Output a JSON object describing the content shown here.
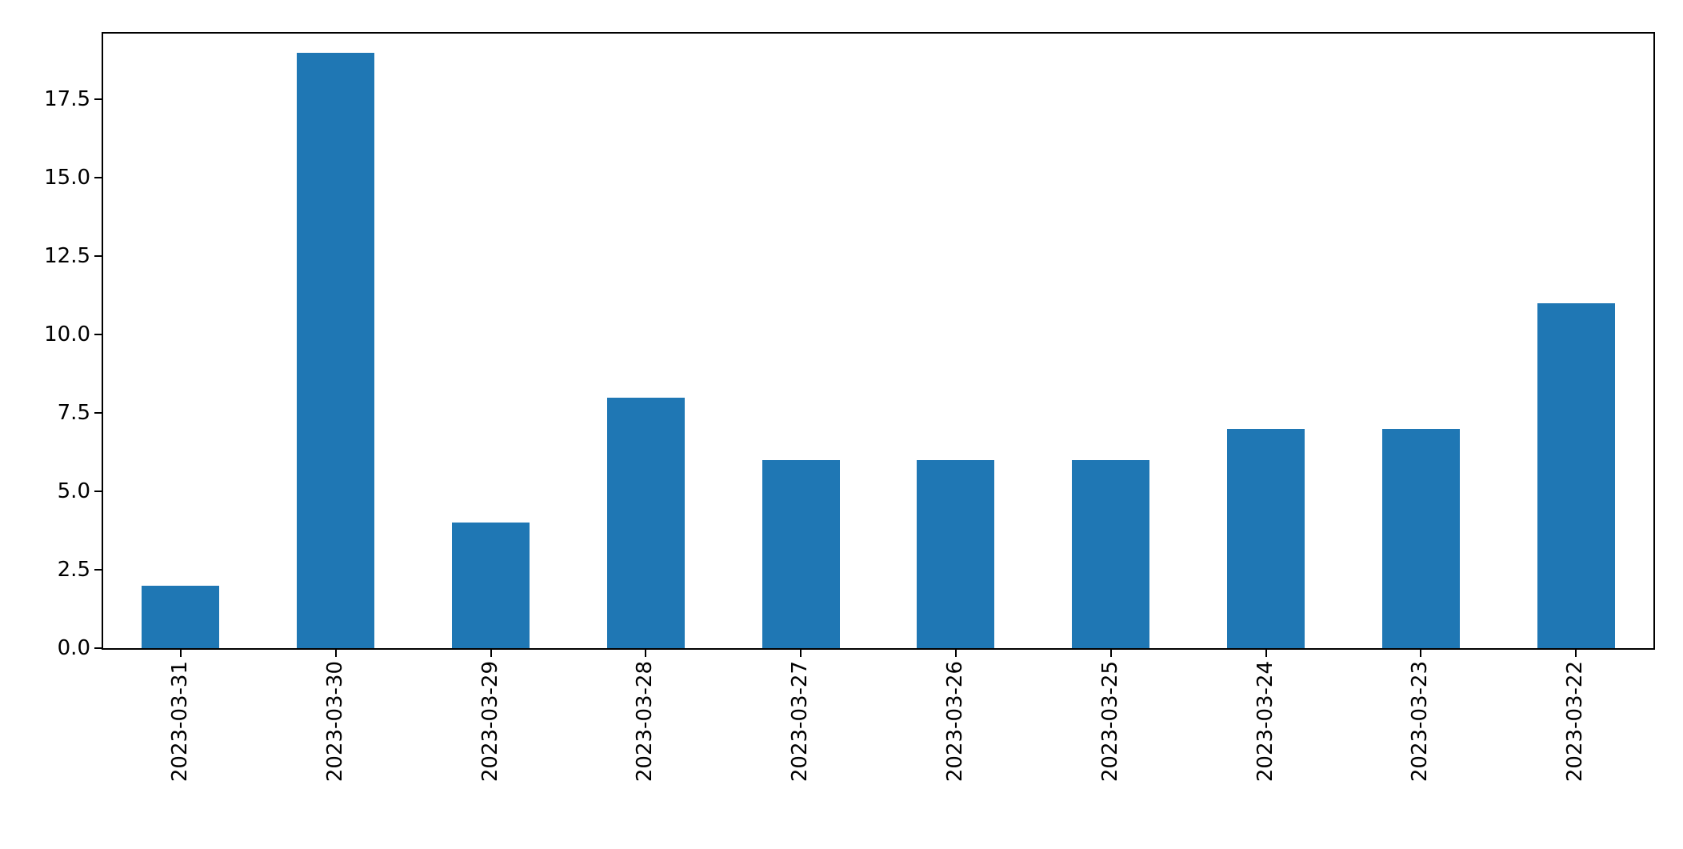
{
  "figure": {
    "background_color": "#ffffff",
    "title": ""
  },
  "chart_data": {
    "type": "bar",
    "title": "",
    "xlabel": "",
    "ylabel": "",
    "categories": [
      "2023-03-31",
      "2023-03-30",
      "2023-03-29",
      "2023-03-28",
      "2023-03-27",
      "2023-03-26",
      "2023-03-25",
      "2023-03-24",
      "2023-03-23",
      "2023-03-22"
    ],
    "values": [
      2,
      19,
      4,
      8,
      6,
      6,
      6,
      7,
      7,
      11
    ],
    "bar_color": "#1f77b4",
    "ylim": [
      0,
      19.6
    ],
    "yticks": [
      0.0,
      2.5,
      5.0,
      7.5,
      10.0,
      12.5,
      15.0,
      17.5
    ],
    "ytick_labels": [
      "0.0",
      "2.5",
      "5.0",
      "7.5",
      "10.0",
      "12.5",
      "15.0",
      "17.5"
    ],
    "xtick_rotation": 90,
    "bar_width_fraction": 0.5,
    "grid": false,
    "legend": null
  }
}
